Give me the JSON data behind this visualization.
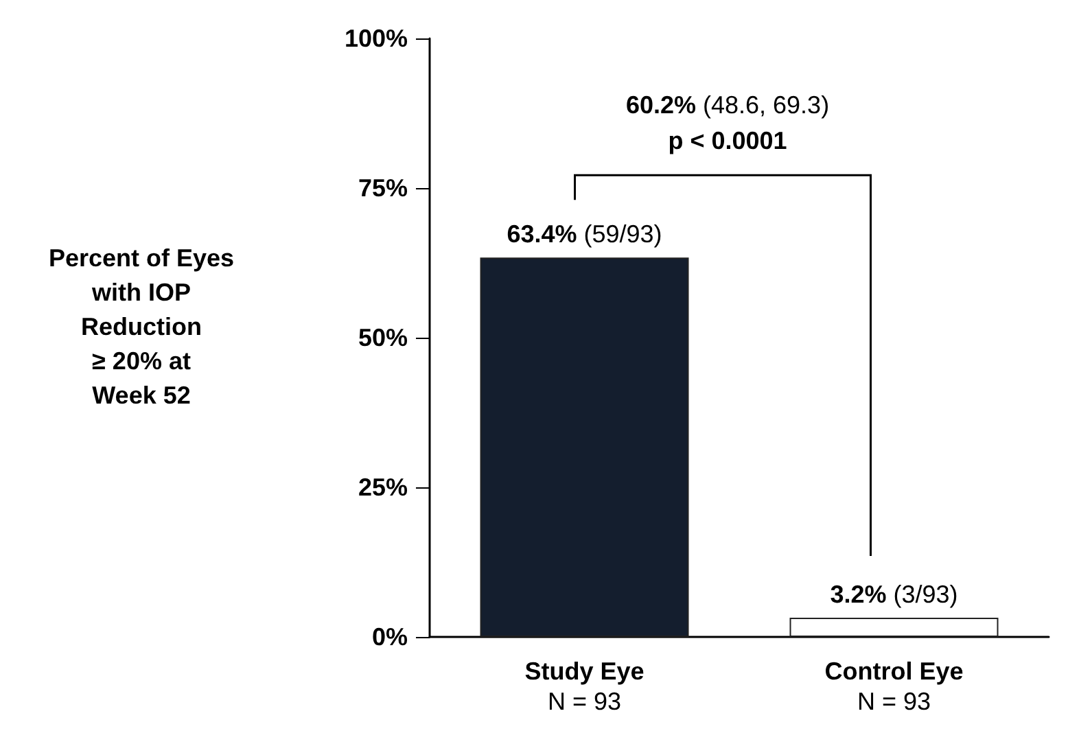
{
  "chart_data": {
    "type": "bar",
    "ylabel": "Percent of Eyes\nwith IOP\nReduction\n≥ 20% at\nWeek 52",
    "categories": [
      "Study Eye\nN = 93",
      "Control Eye\nN = 93"
    ],
    "values": [
      63.4,
      3.2
    ],
    "colors": [
      "#141e2e",
      "#ffffff"
    ],
    "value_labels": [
      "63.4% (59/93)",
      "3.2% (3/93)"
    ],
    "ylim": [
      0,
      100
    ],
    "yticks": [
      {
        "value": 0,
        "label": "0%"
      },
      {
        "value": 25,
        "label": "25%"
      },
      {
        "value": 50,
        "label": "50%"
      },
      {
        "value": 75,
        "label": "75%"
      },
      {
        "value": 100,
        "label": "100%"
      }
    ],
    "annotations": [
      "60.2% (48.6, 69.3)\np < 0.0001"
    ],
    "grid": false
  }
}
